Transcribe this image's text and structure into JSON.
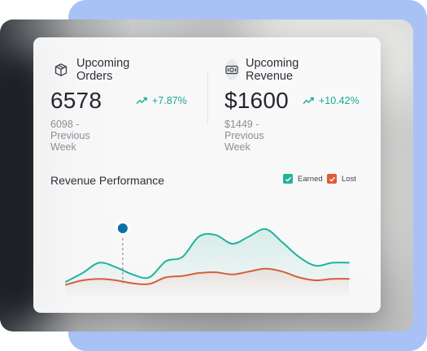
{
  "orders": {
    "title": "Upcoming Orders",
    "value": "6578",
    "change": "+7.87%",
    "previous": "6098 - Previous Week",
    "icon": "box-icon"
  },
  "revenue": {
    "title": "Upcoming Revenue",
    "value": "$1600",
    "change": "+10.42%",
    "previous": "$1449 - Previous Week",
    "icon": "cash-icon"
  },
  "colors": {
    "accent": "#1aa891",
    "earned": "#22b39a",
    "lost": "#e05a36",
    "marker": "#0d6fa8"
  },
  "chart_data": {
    "type": "area",
    "title": "Revenue Performance",
    "legend": [
      "Earned",
      "Lost"
    ],
    "legend_position": "top-right",
    "grid": false,
    "x": [
      0,
      1,
      2,
      3,
      4,
      5,
      6,
      7,
      8,
      9,
      10,
      11,
      12,
      13,
      14,
      15,
      16,
      17
    ],
    "ylim": [
      0,
      100
    ],
    "series": [
      {
        "name": "Earned",
        "values": [
          8,
          20,
          34,
          28,
          18,
          14,
          36,
          42,
          70,
          72,
          60,
          70,
          80,
          62,
          42,
          30,
          34,
          34
        ]
      },
      {
        "name": "Lost",
        "values": [
          4,
          10,
          12,
          10,
          6,
          5,
          14,
          16,
          20,
          21,
          18,
          22,
          26,
          22,
          14,
          10,
          12,
          12
        ]
      }
    ],
    "highlight_index": 4
  }
}
